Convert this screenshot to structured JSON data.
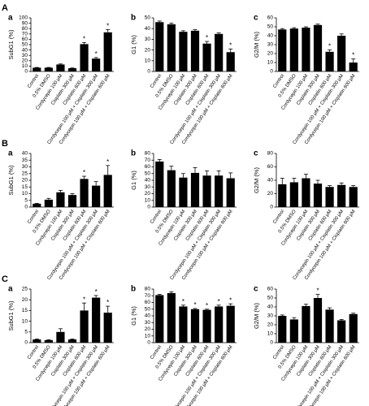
{
  "chart_data": [
    {
      "type": "bar",
      "panel": "A",
      "label": "a",
      "y_label": "SubG1 (%)",
      "categories": [
        "Control",
        "0.5% DMSO",
        "Cordycepin 100 μM",
        "Cisplatin 300 μM",
        "Cisplatin 600 μM",
        "Cordycepin 100 μM + Cisplatin 300 μM",
        "Cordycepin 100 μM + Cisplatin 600 μM"
      ],
      "values": [
        7,
        7,
        13,
        6,
        51,
        24,
        73
      ],
      "errors": [
        0.5,
        0.5,
        1,
        0.5,
        3,
        2,
        5
      ],
      "significance": [
        null,
        null,
        null,
        null,
        "*",
        "*",
        "*"
      ],
      "color": "#000000",
      "ylim": [
        0,
        100
      ],
      "yticks": [
        0,
        10,
        20,
        30,
        40,
        50,
        60,
        70,
        80,
        90,
        100
      ]
    },
    {
      "type": "bar",
      "label": "b",
      "y_label": "G1 (%)",
      "categories": [
        "Control",
        "0.5% DMSO",
        "Cordycepin 100 μM",
        "Cisplatin 300 μM",
        "Cisplatin 600 μM",
        "Cordycepin 100 μM + Cisplatin 300 μM",
        "Cordycepin 100 μM + Cisplatin 600 μM"
      ],
      "values": [
        46,
        44,
        37,
        38,
        26,
        35,
        18
      ],
      "errors": [
        1,
        1,
        1,
        1,
        2,
        1,
        3
      ],
      "significance": [
        null,
        null,
        null,
        null,
        "*",
        null,
        "*"
      ],
      "color": "#000000",
      "ylim": [
        0,
        50
      ],
      "yticks": [
        0,
        10,
        20,
        30,
        40,
        50
      ]
    },
    {
      "type": "bar",
      "label": "c",
      "y_label": "G2/M (%)",
      "categories": [
        "Control",
        "0.5% DMSO",
        "Cordycepin 100 μM",
        "Cisplatin 300 μM",
        "Cisplatin 600 μM",
        "Cordycepin 100 μM + Cisplatin 300 μM",
        "Cordycepin 100 μM + Cisplatin 600 μM"
      ],
      "values": [
        47,
        48,
        49,
        52,
        22,
        40,
        10
      ],
      "errors": [
        1,
        1,
        1,
        1,
        2,
        2,
        4
      ],
      "significance": [
        null,
        null,
        null,
        null,
        "*",
        null,
        "*"
      ],
      "color": "#000000",
      "ylim": [
        0,
        60
      ],
      "yticks": [
        0,
        10,
        20,
        30,
        40,
        50,
        60
      ]
    },
    {
      "type": "bar",
      "panel": "B",
      "label": "a",
      "y_label": "SubG1 (%)",
      "categories": [
        "Control",
        "0.5% DMSO",
        "Cordycepin 100 μM",
        "Cisplatin 300 μM",
        "Cisplatin 600 μM",
        "Cordycepin 100 μM + Cisplatin 300 μM",
        "Cordycepin 100 μM + Cisplatin 600 μM"
      ],
      "values": [
        2.5,
        5.5,
        11,
        9,
        21,
        16,
        24
      ],
      "errors": [
        0.3,
        1,
        1.5,
        1,
        2,
        3,
        7
      ],
      "significance": [
        null,
        null,
        null,
        null,
        "*",
        null,
        "*"
      ],
      "color": "#000000",
      "ylim": [
        0,
        40
      ],
      "yticks": [
        0,
        5,
        10,
        15,
        20,
        25,
        30,
        35,
        40
      ]
    },
    {
      "type": "bar",
      "label": "b",
      "y_label": "G1 (%)",
      "categories": [
        "Control",
        "0.5% DMSO",
        "Cordycepin 100 μM",
        "Cisplatin 300 μM",
        "Cisplatin 600 μM",
        "Cordycepin 100 μM + Cisplatin 300 μM",
        "Cordycepin 100 μM + Cisplatin 600 μM"
      ],
      "values": [
        68,
        55,
        44,
        51,
        47,
        47,
        43
      ],
      "errors": [
        3,
        6,
        6,
        8,
        7,
        7,
        8
      ],
      "significance": [
        null,
        null,
        null,
        null,
        null,
        null,
        null
      ],
      "color": "#000000",
      "ylim": [
        0,
        80
      ],
      "yticks": [
        0,
        10,
        20,
        30,
        40,
        50,
        60,
        70,
        80
      ]
    },
    {
      "type": "bar",
      "label": "c",
      "y_label": "G2/M (%)",
      "categories": [
        "Control",
        "0.5% DMSO",
        "Cordycepin 100 μM",
        "Cisplatin 300 μM",
        "Cisplatin 600 μM",
        "Cordycepin 100 μM + Cisplatin 300 μM",
        "Cordycepin 100 μM + Cisplatin 600 μM"
      ],
      "values": [
        34,
        37,
        43,
        35,
        30,
        33,
        30
      ],
      "errors": [
        9,
        6,
        6,
        5,
        2,
        3,
        2
      ],
      "significance": [
        null,
        null,
        null,
        null,
        null,
        null,
        null
      ],
      "color": "#000000",
      "ylim": [
        0,
        80
      ],
      "yticks": [
        0,
        20,
        40,
        60,
        80
      ]
    },
    {
      "type": "bar",
      "panel": "C",
      "label": "a",
      "y_label": "SubG1 (%)",
      "categories": [
        "Control",
        "0.5% DMSO",
        "Cordycepin 100 μM",
        "Cisplatin 300 μM",
        "Cisplatin 600 μM",
        "Cordycepin 100 μM + Cisplatin 300 μM",
        "Cordycepin 100 μM + Cisplatin 600 μM"
      ],
      "values": [
        1.5,
        1.2,
        5,
        1.5,
        15,
        21,
        14
      ],
      "errors": [
        0.2,
        0.2,
        1.5,
        0.2,
        3.5,
        1,
        3
      ],
      "significance": [
        null,
        null,
        null,
        null,
        "*",
        "*",
        "*"
      ],
      "color": "#000000",
      "ylim": [
        0,
        25
      ],
      "yticks": [
        0,
        5,
        10,
        15,
        20,
        25
      ]
    },
    {
      "type": "bar",
      "label": "b",
      "y_label": "G1 (%)",
      "categories": [
        "Control",
        "0.5% DMSO",
        "Cordycepin 100 μM",
        "Cisplatin 300 μM",
        "Cisplatin 600 μM",
        "Cordycepin 100 μM + Cisplatin 300 μM",
        "Cordycepin 100 μM + Cisplatin 600 μM"
      ],
      "values": [
        71,
        74,
        54,
        50,
        49,
        54,
        55
      ],
      "errors": [
        1,
        2,
        2,
        1,
        1,
        2,
        3
      ],
      "significance": [
        null,
        null,
        "*",
        "*",
        "*",
        "*",
        "*"
      ],
      "color": "#000000",
      "ylim": [
        0,
        80
      ],
      "yticks": [
        0,
        10,
        20,
        30,
        40,
        50,
        60,
        70,
        80
      ]
    },
    {
      "type": "bar",
      "label": "c",
      "y_label": "G2/M (%)",
      "categories": [
        "Control",
        "0.5% DMSO",
        "Cordycepin 100 μM",
        "Cisplatin 300 μM",
        "Cisplatin 600 μM",
        "Cordycepin 100 μM + Cisplatin 300 μM",
        "Cordycepin 100 μM + Cisplatin 600 μM"
      ],
      "values": [
        30,
        26,
        41,
        50,
        37,
        25,
        32
      ],
      "errors": [
        1,
        2,
        2,
        4,
        2,
        1,
        1
      ],
      "significance": [
        null,
        null,
        null,
        "*",
        null,
        null,
        null
      ],
      "color": "#000000",
      "ylim": [
        0,
        60
      ],
      "yticks": [
        0,
        10,
        20,
        30,
        40,
        50,
        60
      ]
    }
  ]
}
